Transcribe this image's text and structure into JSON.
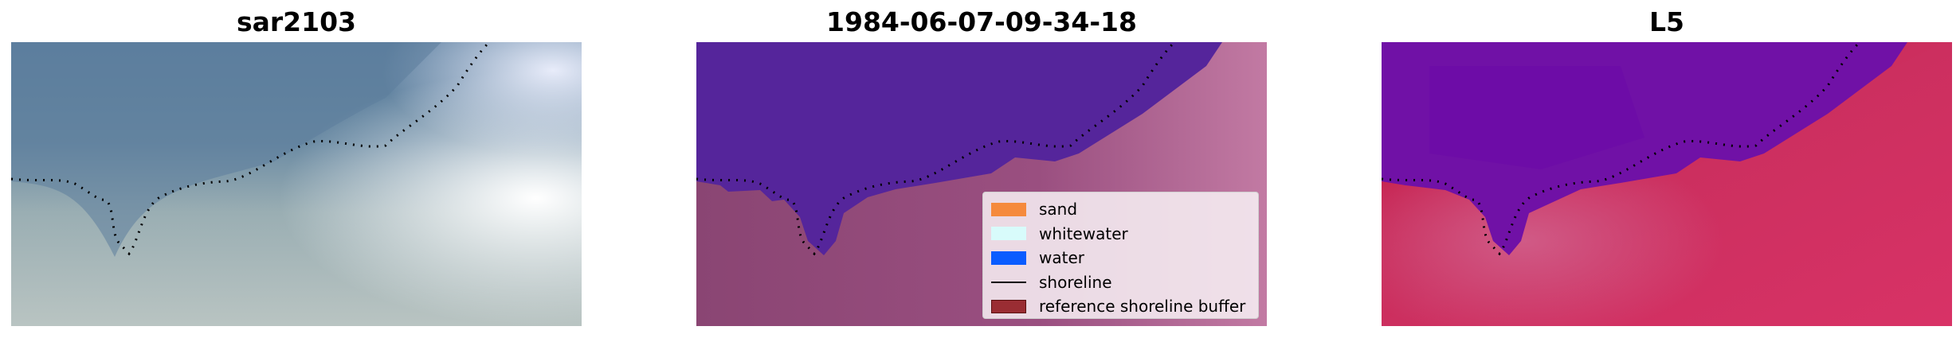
{
  "panels": [
    {
      "title": "sar2103"
    },
    {
      "title": "1984-06-07-09-34-18"
    },
    {
      "title": "L5"
    }
  ],
  "legend": {
    "items": [
      {
        "label": "sand",
        "color": "#f58a3d"
      },
      {
        "label": "whitewater",
        "color": "#d8fbfb"
      },
      {
        "label": "water",
        "color": "#0a5cff"
      },
      {
        "label": "shoreline",
        "color": "#000000"
      },
      {
        "label": "reference shoreline buffer",
        "color": "#9a2d33"
      }
    ]
  },
  "colors": {
    "water_class": "#55259b",
    "land_class": "#8f4878",
    "ndwi_water": "#6a0aa8",
    "ndwi_land": "#c81e52"
  }
}
